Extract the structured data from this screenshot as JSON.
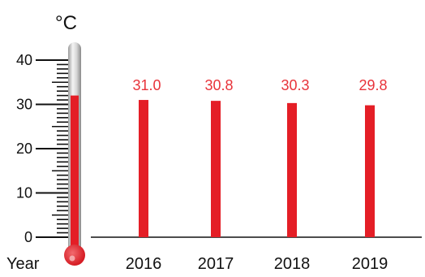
{
  "colors": {
    "bar": "#e41e26",
    "label": "#e8333a",
    "axis": "#111111"
  },
  "chart_data": {
    "type": "bar",
    "categories": [
      "2016",
      "2017",
      "2018",
      "2019"
    ],
    "values": [
      31.0,
      30.8,
      30.3,
      29.8
    ],
    "value_labels": [
      "31.0",
      "30.8",
      "30.3",
      "29.8"
    ],
    "y_unit": "°C",
    "x_label": "Year",
    "y_ticks": [
      "0",
      "10",
      "20",
      "30",
      "40"
    ],
    "ylim": [
      0,
      44
    ],
    "grid": false,
    "legend": "none",
    "thermometer_reading": 32
  }
}
